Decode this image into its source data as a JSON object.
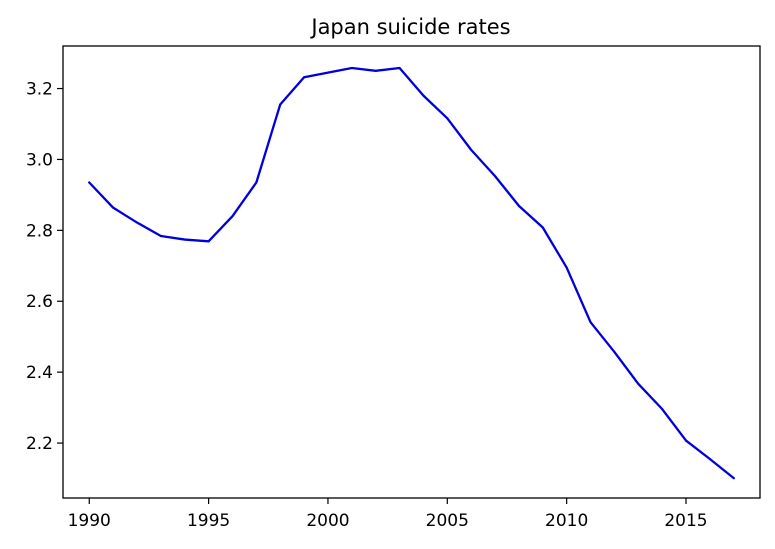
{
  "chart_data": {
    "type": "line",
    "title": "Japan suicide rates",
    "xlabel": "",
    "ylabel": "",
    "grid": false,
    "xlim": [
      1988.9,
      2018.1
    ],
    "ylim": [
      2.045,
      3.32
    ],
    "x_ticks": [
      1990,
      1995,
      2000,
      2005,
      2010,
      2015
    ],
    "y_ticks": [
      2.2,
      2.4,
      2.6,
      2.8,
      3.0,
      3.2
    ],
    "x_tick_labels": [
      "1990",
      "1995",
      "2000",
      "2005",
      "2010",
      "2015"
    ],
    "y_tick_labels": [
      "2.2",
      "2.4",
      "2.6",
      "2.8",
      "3.0",
      "3.2"
    ],
    "series": [
      {
        "color": "#0000dd",
        "x": [
          1990,
          1991,
          1992,
          1993,
          1994,
          1995,
          1996,
          1997,
          1998,
          1999,
          2000,
          2001,
          2002,
          2003,
          2004,
          2005,
          2006,
          2007,
          2008,
          2009,
          2010,
          2011,
          2012,
          2013,
          2014,
          2015,
          2016,
          2017
        ],
        "values": [
          2.935,
          2.864,
          2.822,
          2.784,
          2.774,
          2.769,
          2.84,
          2.935,
          3.155,
          3.232,
          3.245,
          3.258,
          3.25,
          3.258,
          3.18,
          3.116,
          3.027,
          2.953,
          2.869,
          2.808,
          2.695,
          2.541,
          2.457,
          2.367,
          2.296,
          2.207,
          2.155,
          2.101
        ]
      }
    ]
  }
}
